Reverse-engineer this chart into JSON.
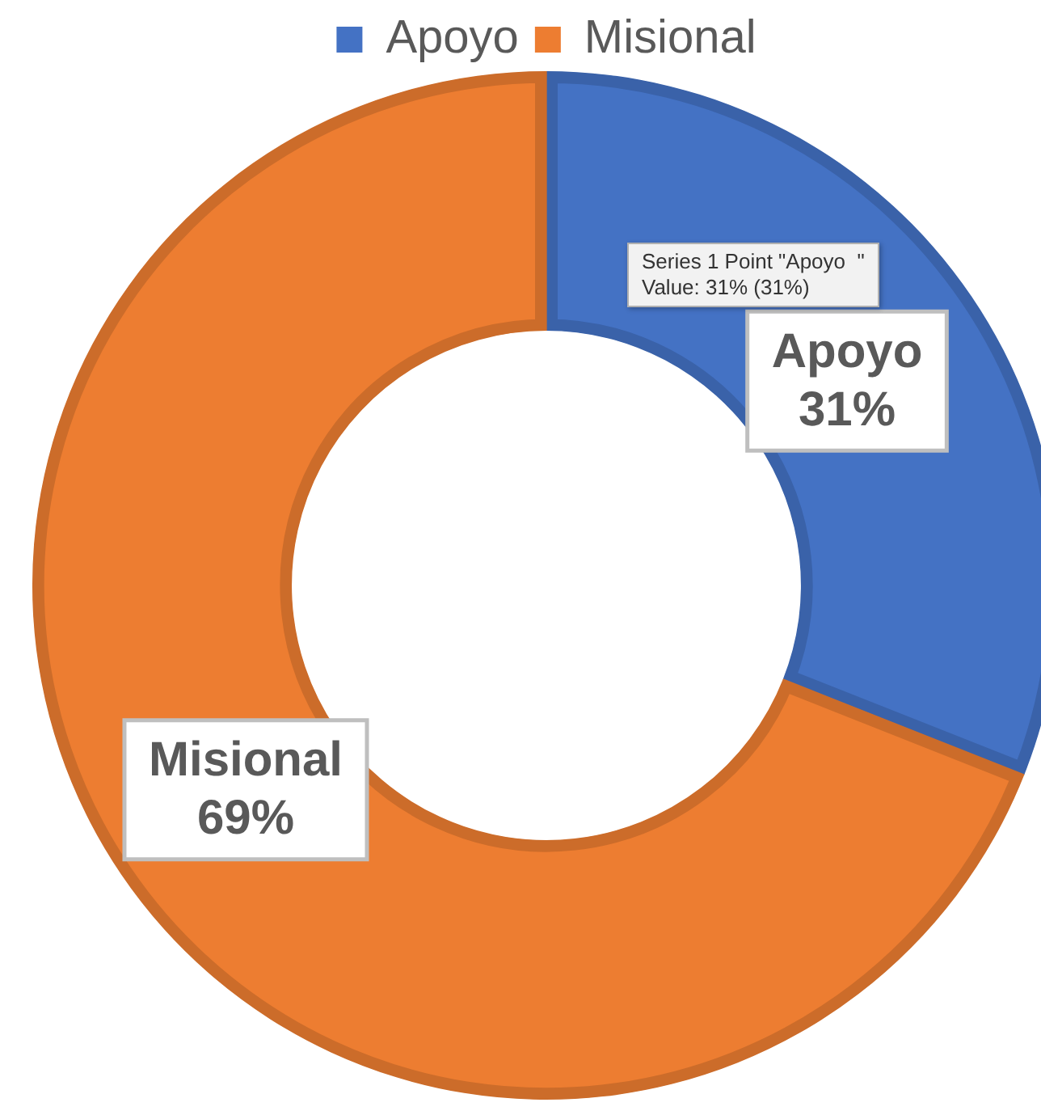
{
  "chart_data": {
    "type": "donut",
    "categories": [
      "Apoyo",
      "Misional"
    ],
    "values": [
      31,
      69
    ],
    "colors": [
      "#4472c4",
      "#ed7d31"
    ],
    "value_labels": [
      "31%",
      "69%"
    ],
    "legend": "top",
    "annotations": [
      "Series 1 Point \"Apoyo  \"\nValue: 31% (31%)"
    ]
  }
}
